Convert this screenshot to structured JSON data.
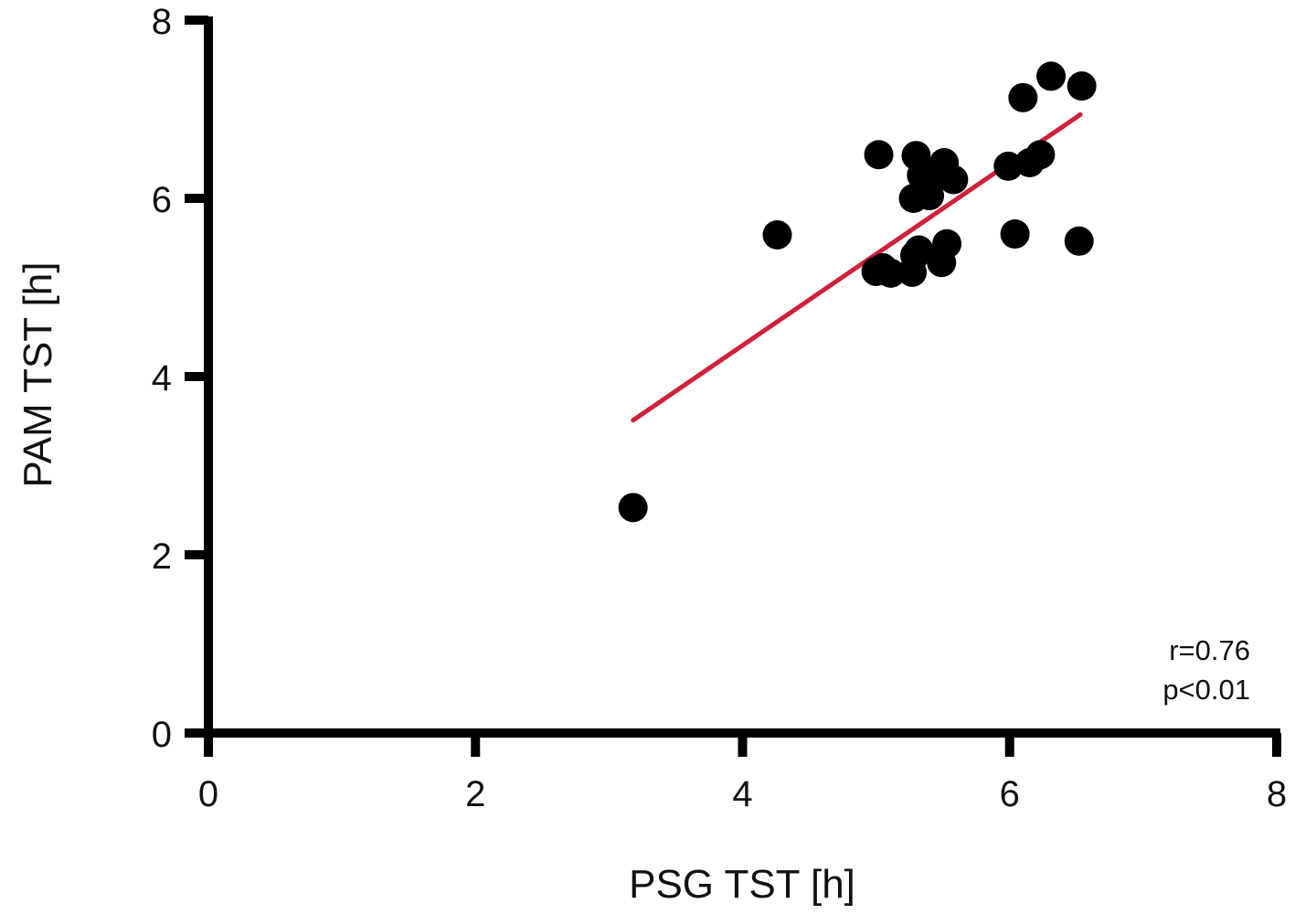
{
  "chart_data": {
    "type": "scatter",
    "title": "",
    "xlabel": "PSG TST [h]",
    "ylabel": "PAM TST [h]",
    "xlim": [
      0,
      8
    ],
    "ylim": [
      0,
      8
    ],
    "xticks": [
      "0",
      "2",
      "4",
      "6",
      "8"
    ],
    "yticks": [
      "0",
      "2",
      "4",
      "6",
      "8"
    ],
    "grid": false,
    "legend": "none",
    "point_color": "#000000",
    "regression_color": "#d0203a",
    "points": [
      {
        "x": 3.18,
        "y": 2.53
      },
      {
        "x": 4.26,
        "y": 5.59
      },
      {
        "x": 5.02,
        "y": 6.49
      },
      {
        "x": 5.0,
        "y": 5.18
      },
      {
        "x": 5.05,
        "y": 5.22
      },
      {
        "x": 5.11,
        "y": 5.16
      },
      {
        "x": 5.27,
        "y": 5.17
      },
      {
        "x": 5.29,
        "y": 5.36
      },
      {
        "x": 5.32,
        "y": 5.42
      },
      {
        "x": 5.28,
        "y": 6.0
      },
      {
        "x": 5.3,
        "y": 6.48
      },
      {
        "x": 5.34,
        "y": 6.26
      },
      {
        "x": 5.4,
        "y": 6.03
      },
      {
        "x": 5.46,
        "y": 6.3
      },
      {
        "x": 5.51,
        "y": 6.4
      },
      {
        "x": 5.58,
        "y": 6.21
      },
      {
        "x": 5.49,
        "y": 5.28
      },
      {
        "x": 5.53,
        "y": 5.49
      },
      {
        "x": 5.99,
        "y": 6.36
      },
      {
        "x": 6.04,
        "y": 5.6
      },
      {
        "x": 6.1,
        "y": 7.13
      },
      {
        "x": 6.15,
        "y": 6.4
      },
      {
        "x": 6.23,
        "y": 6.49
      },
      {
        "x": 6.31,
        "y": 7.37
      },
      {
        "x": 6.52,
        "y": 5.52
      },
      {
        "x": 6.54,
        "y": 7.26
      }
    ],
    "regression_line": {
      "x": [
        3.18,
        6.53
      ],
      "y": [
        3.51,
        6.94
      ]
    },
    "annotations": [
      "r=0.76",
      "p<0.01"
    ]
  }
}
